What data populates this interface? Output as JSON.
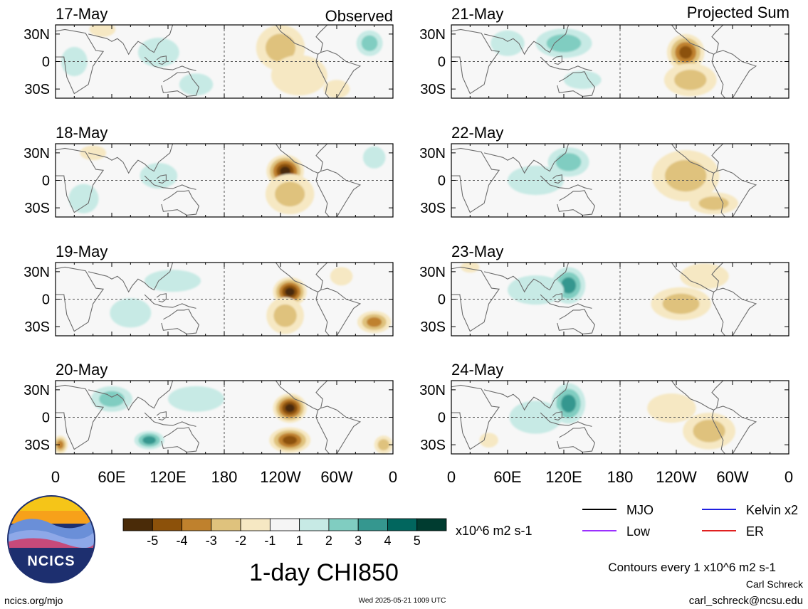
{
  "figure": {
    "title": "1-day CHI850",
    "units_label": "x10^6 m2 s-1",
    "contour_note": "Contours every 1 x10^6 m2 s-1",
    "observed_label": "Observed",
    "projected_label": "Projected Sum",
    "author": "Carl Schreck",
    "email": "carl_schreck@ncsu.edu",
    "website": "ncics.org/mjo",
    "timestamp": "Wed 2025-05-21 1009 UTC",
    "logo_text": "NCICS"
  },
  "legend": {
    "entries": [
      {
        "label": "MJO",
        "color": "#000000"
      },
      {
        "label": "Kelvin x2",
        "color": "#1f1fe0"
      },
      {
        "label": "Low",
        "color": "#9b30ff"
      },
      {
        "label": "ER",
        "color": "#e02020"
      }
    ]
  },
  "colorbar": {
    "tick_labels": [
      "-5",
      "-4",
      "-3",
      "-2",
      "-1",
      "1",
      "2",
      "3",
      "4",
      "5"
    ],
    "colors": [
      "#4a2b08",
      "#8c510a",
      "#bf812d",
      "#dfc27d",
      "#f6e8c3",
      "#f5f5f5",
      "#c7eae5",
      "#80cdc1",
      "#35978f",
      "#01665e",
      "#003c30"
    ]
  },
  "chart_data": {
    "type": "heatmap",
    "title": "1-day CHI850",
    "x_tick_labels": [
      "0",
      "60E",
      "120E",
      "180",
      "120W",
      "60W",
      "0"
    ],
    "y_tick_labels": [
      "30N",
      "0",
      "30S"
    ],
    "xlim_degE": [
      0,
      360
    ],
    "ylim_deg": [
      -40,
      40
    ],
    "units": "x10^6 m2 s-1",
    "panels": [
      {
        "date": "17-May",
        "group": "Observed",
        "blobs": [
          {
            "lon": 240,
            "lat": 15,
            "value": -2.8,
            "rlon": 26,
            "rlat": 25
          },
          {
            "lon": 260,
            "lat": -15,
            "value": -1.7,
            "rlon": 30,
            "rlat": 22
          },
          {
            "lon": 300,
            "lat": -30,
            "value": -1.5,
            "rlon": 14,
            "rlat": 10
          },
          {
            "lon": 50,
            "lat": 35,
            "value": -1.8,
            "rlon": 14,
            "rlat": 8
          },
          {
            "lon": 335,
            "lat": 20,
            "value": 2.8,
            "rlon": 14,
            "rlat": 14
          },
          {
            "lon": 110,
            "lat": 10,
            "value": 1.6,
            "rlon": 22,
            "rlat": 16
          },
          {
            "lon": 20,
            "lat": 0,
            "value": 1.3,
            "rlon": 14,
            "rlat": 16
          },
          {
            "lon": 150,
            "lat": -25,
            "value": 1.2,
            "rlon": 18,
            "rlat": 12
          }
        ]
      },
      {
        "date": "18-May",
        "group": "Observed",
        "blobs": [
          {
            "lon": 245,
            "lat": 10,
            "value": -5.2,
            "rlon": 20,
            "rlat": 18
          },
          {
            "lon": 250,
            "lat": -15,
            "value": -2.4,
            "rlon": 26,
            "rlat": 22
          },
          {
            "lon": 40,
            "lat": 30,
            "value": -1.6,
            "rlon": 14,
            "rlat": 8
          },
          {
            "lon": 110,
            "lat": 5,
            "value": 1.8,
            "rlon": 20,
            "rlat": 14
          },
          {
            "lon": 30,
            "lat": -20,
            "value": 1.2,
            "rlon": 16,
            "rlat": 16
          },
          {
            "lon": 340,
            "lat": 25,
            "value": 1.3,
            "rlon": 12,
            "rlat": 12
          }
        ]
      },
      {
        "date": "19-May",
        "group": "Observed",
        "blobs": [
          {
            "lon": 250,
            "lat": 8,
            "value": -5.2,
            "rlon": 18,
            "rlat": 16
          },
          {
            "lon": 245,
            "lat": -18,
            "value": -2.8,
            "rlon": 20,
            "rlat": 20
          },
          {
            "lon": 340,
            "lat": -25,
            "value": -3.5,
            "rlon": 18,
            "rlat": 12
          },
          {
            "lon": 305,
            "lat": 25,
            "value": -1.4,
            "rlon": 12,
            "rlat": 10
          },
          {
            "lon": 125,
            "lat": 20,
            "value": 1.6,
            "rlon": 30,
            "rlat": 12
          },
          {
            "lon": 80,
            "lat": -15,
            "value": 1.5,
            "rlon": 22,
            "rlat": 16
          }
        ]
      },
      {
        "date": "20-May",
        "group": "Observed",
        "blobs": [
          {
            "lon": 250,
            "lat": 10,
            "value": -5.2,
            "rlon": 18,
            "rlat": 16
          },
          {
            "lon": 250,
            "lat": -25,
            "value": -4.2,
            "rlon": 22,
            "rlat": 14
          },
          {
            "lon": 5,
            "lat": -30,
            "value": -3.4,
            "rlon": 8,
            "rlat": 10
          },
          {
            "lon": 350,
            "lat": -30,
            "value": -2.5,
            "rlon": 10,
            "rlat": 10
          },
          {
            "lon": 60,
            "lat": 20,
            "value": 2.8,
            "rlon": 22,
            "rlat": 14
          },
          {
            "lon": 100,
            "lat": -25,
            "value": 3.0,
            "rlon": 16,
            "rlat": 10
          },
          {
            "lon": 150,
            "lat": 20,
            "value": 1.8,
            "rlon": 30,
            "rlat": 14
          }
        ]
      },
      {
        "date": "21-May",
        "group": "Projected Sum",
        "blobs": [
          {
            "lon": 250,
            "lat": 10,
            "value": -4.6,
            "rlon": 20,
            "rlat": 20
          },
          {
            "lon": 255,
            "lat": -20,
            "value": -2.5,
            "rlon": 28,
            "rlat": 18
          },
          {
            "lon": 120,
            "lat": 20,
            "value": 2.4,
            "rlon": 30,
            "rlat": 16
          },
          {
            "lon": 60,
            "lat": 20,
            "value": 1.6,
            "rlon": 18,
            "rlat": 14
          },
          {
            "lon": 140,
            "lat": -20,
            "value": 1.2,
            "rlon": 20,
            "rlat": 10
          }
        ]
      },
      {
        "date": "22-May",
        "group": "Projected Sum",
        "blobs": [
          {
            "lon": 250,
            "lat": 5,
            "value": -2.8,
            "rlon": 36,
            "rlat": 28
          },
          {
            "lon": 280,
            "lat": -25,
            "value": -2.2,
            "rlon": 26,
            "rlat": 12
          },
          {
            "lon": 125,
            "lat": 20,
            "value": 2.9,
            "rlon": 22,
            "rlat": 16
          },
          {
            "lon": 90,
            "lat": 0,
            "value": 1.4,
            "rlon": 30,
            "rlat": 16
          }
        ]
      },
      {
        "date": "23-May",
        "group": "Projected Sum",
        "blobs": [
          {
            "lon": 245,
            "lat": -5,
            "value": -2.8,
            "rlon": 32,
            "rlat": 18
          },
          {
            "lon": 270,
            "lat": 25,
            "value": -1.6,
            "rlon": 26,
            "rlat": 14
          },
          {
            "lon": 125,
            "lat": 15,
            "value": 3.3,
            "rlon": 18,
            "rlat": 20
          },
          {
            "lon": 90,
            "lat": 10,
            "value": 1.4,
            "rlon": 30,
            "rlat": 16
          },
          {
            "lon": 20,
            "lat": 35,
            "value": -1.2,
            "rlon": 10,
            "rlat": 6
          }
        ]
      },
      {
        "date": "24-May",
        "group": "Projected Sum",
        "blobs": [
          {
            "lon": 275,
            "lat": -15,
            "value": -2.9,
            "rlon": 28,
            "rlat": 20
          },
          {
            "lon": 235,
            "lat": 10,
            "value": -1.5,
            "rlon": 26,
            "rlat": 16
          },
          {
            "lon": 125,
            "lat": 15,
            "value": 3.4,
            "rlon": 18,
            "rlat": 22
          },
          {
            "lon": 90,
            "lat": 0,
            "value": 1.4,
            "rlon": 28,
            "rlat": 18
          },
          {
            "lon": 40,
            "lat": -25,
            "value": -1.2,
            "rlon": 10,
            "rlat": 8
          }
        ]
      }
    ]
  }
}
